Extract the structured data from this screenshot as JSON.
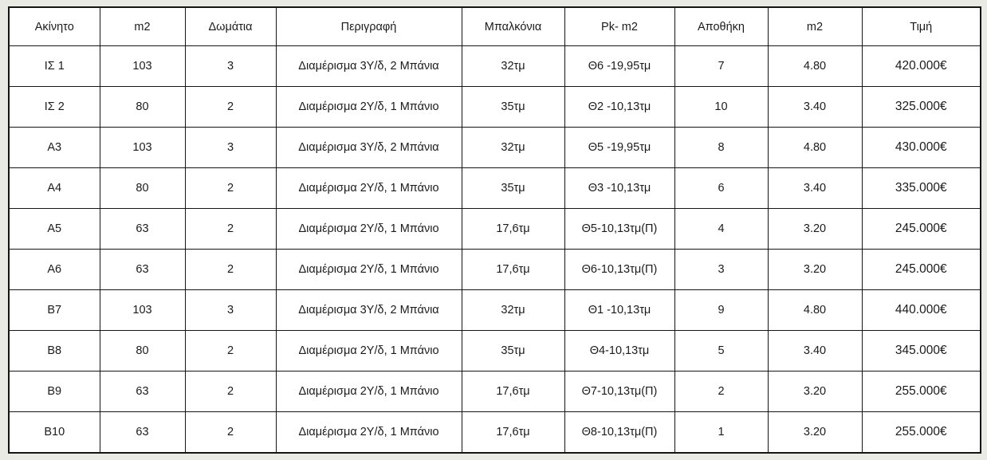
{
  "page": {
    "background_color": "#e9eae3",
    "table_background_color": "#ffffff",
    "border_color": "#151515",
    "text_color": "#1b1b1b"
  },
  "table": {
    "headers": [
      "Ακίνητο",
      "m2",
      "Δωμάτια",
      "Περιγραφή",
      "Μπαλκόνια",
      "Pk- m2",
      "Αποθήκη",
      "m2",
      "Τιμή"
    ],
    "rows": [
      [
        "ΙΣ 1",
        "103",
        "3",
        "Διαμέρισμα 3Υ/δ, 2 Μπάνια",
        "32τμ",
        "Θ6 -19,95τμ",
        "7",
        "4.80",
        "420.000€"
      ],
      [
        "ΙΣ 2",
        "80",
        "2",
        "Διαμέρισμα 2Υ/δ, 1 Μπάνιο",
        "35τμ",
        "Θ2 -10,13τμ",
        "10",
        "3.40",
        "325.000€"
      ],
      [
        "A3",
        "103",
        "3",
        "Διαμέρισμα 3Υ/δ, 2 Μπάνια",
        "32τμ",
        "Θ5 -19,95τμ",
        "8",
        "4.80",
        "430.000€"
      ],
      [
        "A4",
        "80",
        "2",
        "Διαμέρισμα 2Υ/δ, 1 Μπάνιο",
        "35τμ",
        "Θ3 -10,13τμ",
        "6",
        "3.40",
        "335.000€"
      ],
      [
        "A5",
        "63",
        "2",
        "Διαμέρισμα 2Υ/δ, 1 Μπάνιο",
        "17,6τμ",
        "Θ5-10,13τμ(Π)",
        "4",
        "3.20",
        "245.000€"
      ],
      [
        "A6",
        "63",
        "2",
        "Διαμέρισμα 2Υ/δ, 1 Μπάνιο",
        "17,6τμ",
        "Θ6-10,13τμ(Π)",
        "3",
        "3.20",
        "245.000€"
      ],
      [
        "B7",
        "103",
        "3",
        "Διαμέρισμα 3Υ/δ, 2 Μπάνια",
        "32τμ",
        "Θ1 -10,13τμ",
        "9",
        "4.80",
        "440.000€"
      ],
      [
        "B8",
        "80",
        "2",
        "Διαμέρισμα 2Υ/δ, 1 Μπάνιο",
        "35τμ",
        "Θ4-10,13τμ",
        "5",
        "3.40",
        "345.000€"
      ],
      [
        "B9",
        "63",
        "2",
        "Διαμέρισμα 2Υ/δ, 1 Μπάνιο",
        "17,6τμ",
        "Θ7-10,13τμ(Π)",
        "2",
        "3.20",
        "255.000€"
      ],
      [
        "B10",
        "63",
        "2",
        "Διαμέρισμα 2Υ/δ, 1 Μπάνιο",
        "17,6τμ",
        "Θ8-10,13τμ(Π)",
        "1",
        "3.20",
        "255.000€"
      ]
    ]
  }
}
